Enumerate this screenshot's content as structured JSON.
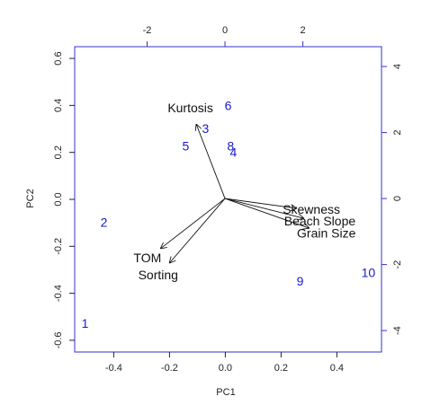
{
  "chart_data": {
    "type": "biplot",
    "xlabel": "PC1",
    "ylabel": "PC2",
    "xlim": [
      -0.54,
      0.56
    ],
    "ylim": [
      -0.65,
      0.65
    ],
    "xticks": [
      -0.4,
      -0.2,
      {
        "value": 0,
        "label": "0.0"
      },
      0.2,
      0.4
    ],
    "yticks": [
      -0.6,
      -0.4,
      -0.2,
      {
        "value": 0,
        "label": "0.0"
      },
      0.2,
      0.4,
      0.6
    ],
    "x2lim": [
      -3.86,
      4.02
    ],
    "y2lim": [
      -4.65,
      4.6
    ],
    "x2ticks": [
      -2,
      0,
      2
    ],
    "y2ticks": [
      -4,
      -2,
      0,
      2,
      4
    ],
    "observations": {
      "color": "#1a1acd",
      "labels": [
        "1",
        "2",
        "3",
        "4",
        "5",
        "6",
        "8",
        "9",
        "10"
      ],
      "x": [
        -0.503,
        -0.435,
        -0.071,
        0.029,
        -0.142,
        0.01,
        0.019,
        0.268,
        0.513
      ],
      "y": [
        -0.532,
        -0.103,
        0.298,
        0.195,
        0.222,
        0.394,
        0.222,
        -0.352,
        -0.317
      ]
    },
    "loadings": {
      "color": "#111111",
      "names": [
        "Kurtosis",
        "TOM",
        "Sorting",
        "Skewness",
        "Beach Slope",
        "Grain Size"
      ],
      "x": [
        -0.74,
        -1.66,
        -1.43,
        1.85,
        2.03,
        2.17
      ],
      "y": [
        2.26,
        -1.52,
        -1.96,
        -0.3,
        -0.6,
        -0.9
      ]
    }
  }
}
